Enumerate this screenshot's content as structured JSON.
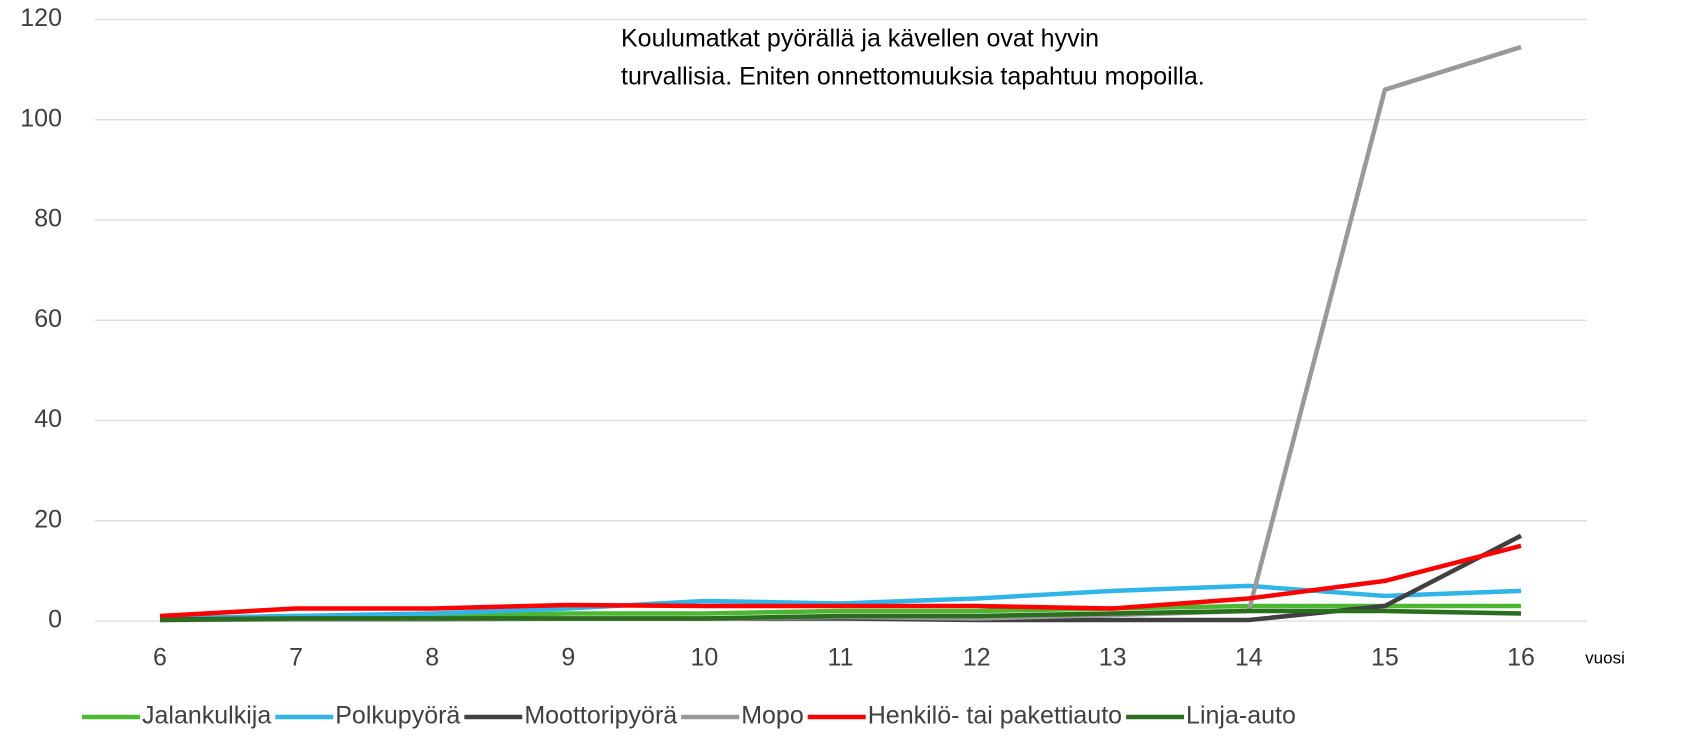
{
  "chart_data": {
    "type": "line",
    "x": [
      6,
      7,
      8,
      9,
      10,
      11,
      12,
      13,
      14,
      15,
      16
    ],
    "xticks": [
      6,
      7,
      8,
      9,
      10,
      11,
      12,
      13,
      14,
      15,
      16
    ],
    "xlabel": "vuosi",
    "ylim": [
      0,
      120
    ],
    "yticks": [
      0,
      20,
      40,
      60,
      80,
      100,
      120
    ],
    "grid": true,
    "annotation": [
      "Koulumatkat pyörällä ja kävellen ovat hyvin",
      "turvallisia. Eniten onnettomuuksia tapahtuu mopoilla."
    ],
    "legend": "bottom",
    "series": [
      {
        "name": "Jalankulkija",
        "color": "#4cb832",
        "values": [
          0.5,
          1,
          1,
          1.5,
          1.5,
          2,
          2,
          2.5,
          3,
          3,
          3
        ]
      },
      {
        "name": "Polkupyörä",
        "color": "#2fb5e8",
        "values": [
          0.5,
          1,
          1.5,
          2.5,
          4,
          3.5,
          4.5,
          6,
          7,
          5,
          6
        ]
      },
      {
        "name": "Moottoripyörä",
        "color": "#404040",
        "values": [
          0.3,
          0.5,
          0.5,
          0.5,
          0.5,
          0.5,
          0.2,
          0.2,
          0.2,
          3,
          17
        ]
      },
      {
        "name": "Mopo",
        "color": "#999999",
        "values": [
          0.2,
          0.3,
          0.3,
          0.5,
          0.5,
          0.8,
          0.5,
          1.2,
          2,
          106,
          114.5
        ]
      },
      {
        "name": "Henkilö- tai pakettiauto",
        "color": "#ff0000",
        "values": [
          1,
          2.5,
          2.5,
          3.2,
          3,
          3,
          3,
          2.5,
          4.5,
          8,
          15
        ]
      },
      {
        "name": "Linja-auto",
        "color": "#2a6e1e",
        "values": [
          0.2,
          0.5,
          0.5,
          0.5,
          0.5,
          1,
          1,
          1.5,
          2,
          2,
          1.5
        ]
      }
    ]
  }
}
